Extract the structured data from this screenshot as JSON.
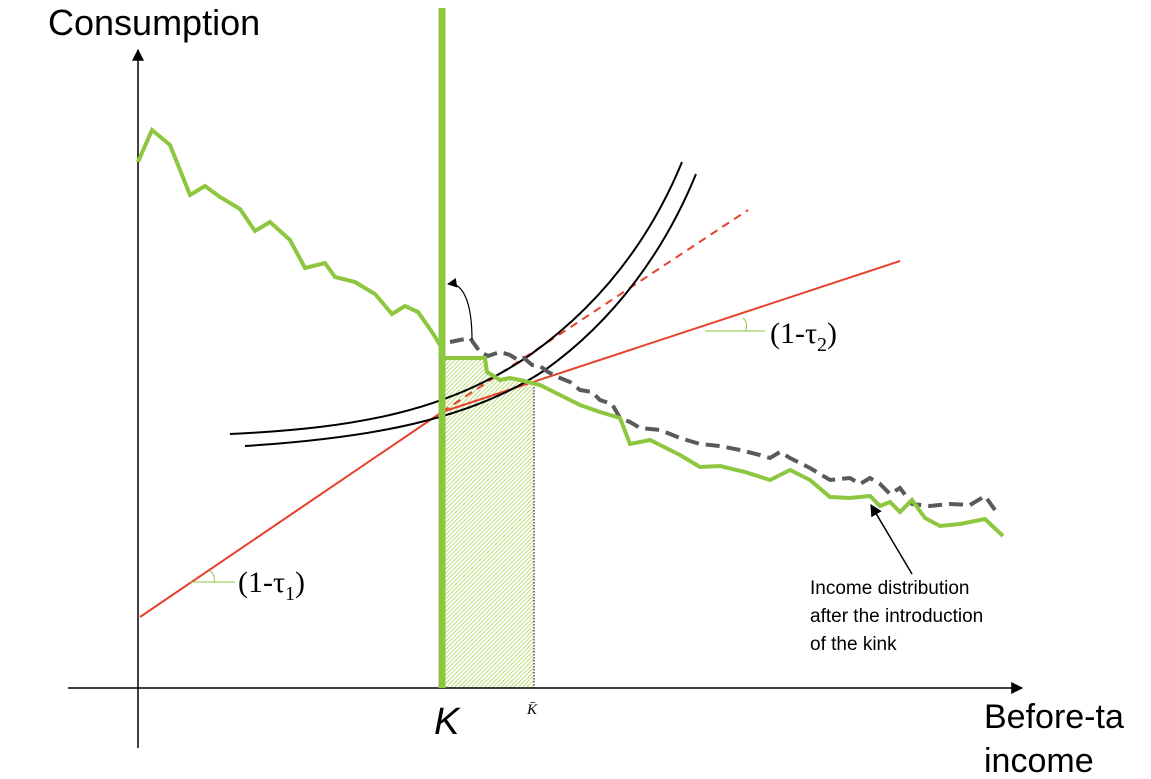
{
  "labels": {
    "y_axis": "Consumption",
    "x_axis_line1": "Before-ta",
    "x_axis_line2": "income",
    "kink_point": "K",
    "bunch_edge": "K̄",
    "slope1_prefix": "(1-τ",
    "slope1_sub": "1",
    "slope2_prefix": "(1-τ",
    "slope2_sub": "2",
    "paren_close": ")",
    "annotation_lines": [
      "Income distribution",
      "after the introduction",
      "of the kink"
    ]
  },
  "colors": {
    "budget_line": "#e8402a",
    "density_before": "#5a5a5a",
    "density_after": "#8dc63f",
    "indifference_curve": "#000000",
    "axes": "#000000",
    "hatch": "#a6d04f",
    "slope_marker": "#8dc63f"
  }
}
